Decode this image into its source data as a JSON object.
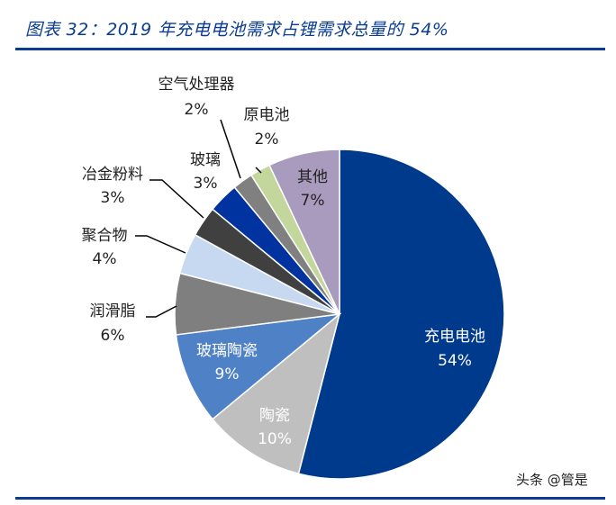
{
  "title": "图表 32：2019 年充电电池需求占锂需求总量的 54%",
  "watermark": "头条 @管是",
  "chart_data": {
    "type": "pie",
    "title": "图表 32：2019 年充电电池需求占锂需求总量的 54%",
    "start": "12 o'clock, clockwise",
    "slices": [
      {
        "label": "充电电池",
        "value": 54,
        "value_label": "54%",
        "color": "#003a8c"
      },
      {
        "label": "陶瓷",
        "value": 10,
        "value_label": "10%",
        "color": "#bfbfbf"
      },
      {
        "label": "玻璃陶瓷",
        "value": 9,
        "value_label": "9%",
        "color": "#4f81c7"
      },
      {
        "label": "润滑脂",
        "value": 6,
        "value_label": "6%",
        "color": "#7f7f7f"
      },
      {
        "label": "聚合物",
        "value": 4,
        "value_label": "4%",
        "color": "#c6d9f0"
      },
      {
        "label": "冶金粉料",
        "value": 3,
        "value_label": "3%",
        "color": "#404040"
      },
      {
        "label": "玻璃",
        "value": 3,
        "value_label": "3%",
        "color": "#0033a0"
      },
      {
        "label": "空气处理器",
        "value": 2,
        "value_label": "2%",
        "color": "#808080"
      },
      {
        "label": "原电池",
        "value": 2,
        "value_label": "2%",
        "color": "#c3d69b"
      },
      {
        "label": "其他",
        "value": 7,
        "value_label": "7%",
        "color": "#a99bbd"
      }
    ]
  }
}
